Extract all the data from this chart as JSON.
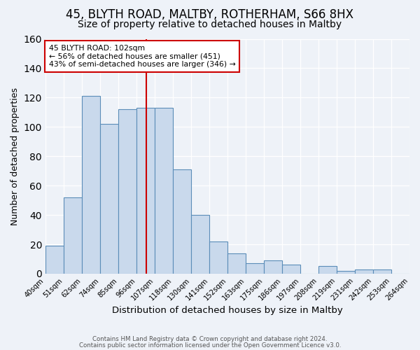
{
  "title": "45, BLYTH ROAD, MALTBY, ROTHERHAM, S66 8HX",
  "subtitle": "Size of property relative to detached houses in Maltby",
  "xlabel": "Distribution of detached houses by size in Maltby",
  "ylabel": "Number of detached properties",
  "bin_labels": [
    "40sqm",
    "51sqm",
    "62sqm",
    "74sqm",
    "85sqm",
    "96sqm",
    "107sqm",
    "118sqm",
    "130sqm",
    "141sqm",
    "152sqm",
    "163sqm",
    "175sqm",
    "186sqm",
    "197sqm",
    "208sqm",
    "219sqm",
    "231sqm",
    "242sqm",
    "253sqm",
    "264sqm"
  ],
  "bin_values": [
    19,
    52,
    121,
    102,
    112,
    113,
    113,
    71,
    40,
    22,
    14,
    7,
    9,
    6,
    0,
    5,
    2,
    3,
    3,
    0
  ],
  "bar_color": "#c9d9ec",
  "bar_edge_color": "#5b8db8",
  "ylim": [
    0,
    160
  ],
  "yticks": [
    0,
    20,
    40,
    60,
    80,
    100,
    120,
    140,
    160
  ],
  "vline_color": "#cc0000",
  "annotation_title": "45 BLYTH ROAD: 102sqm",
  "annotation_line1": "← 56% of detached houses are smaller (451)",
  "annotation_line2": "43% of semi-detached houses are larger (346) →",
  "annotation_box_color": "#ffffff",
  "annotation_box_edge_color": "#cc0000",
  "footer1": "Contains HM Land Registry data © Crown copyright and database right 2024.",
  "footer2": "Contains public sector information licensed under the Open Government Licence v3.0.",
  "background_color": "#eef2f8",
  "grid_color": "#ffffff",
  "title_fontsize": 12,
  "subtitle_fontsize": 10,
  "xlabel_fontsize": 9.5,
  "ylabel_fontsize": 9
}
